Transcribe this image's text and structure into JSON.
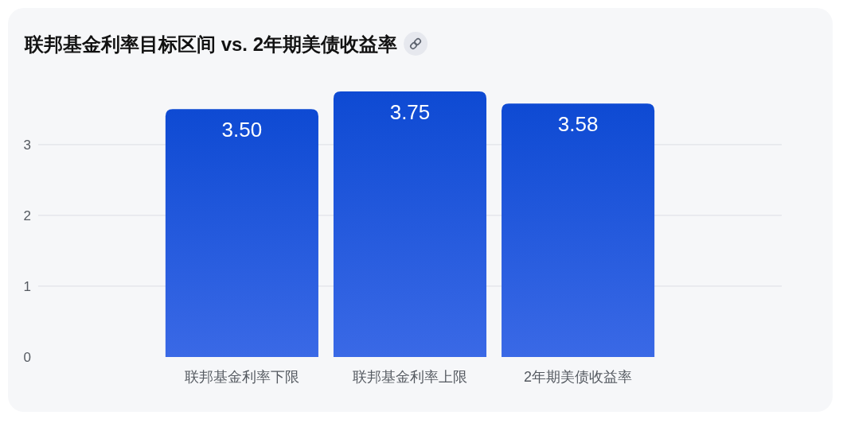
{
  "chart_data": {
    "type": "bar",
    "title": "联邦基金利率目标区间 vs. 2年期美债收益率",
    "categories": [
      "联邦基金利率下限",
      "联邦基金利率上限",
      "2年期美债收益率"
    ],
    "values": [
      3.5,
      3.75,
      3.58
    ],
    "value_labels": [
      "3.50",
      "3.75",
      "3.58"
    ],
    "color": "#2458e3",
    "ylim": [
      0,
      3.75
    ],
    "yticks": [
      0,
      1,
      2,
      3
    ],
    "grid": "y"
  }
}
